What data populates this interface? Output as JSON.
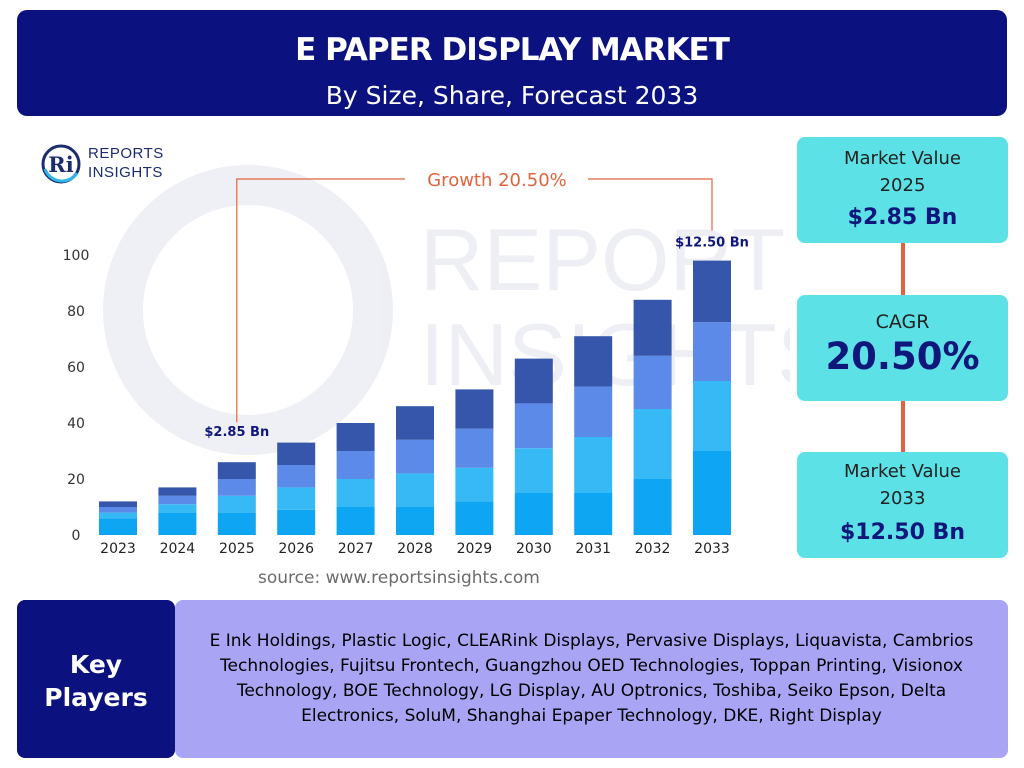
{
  "header": {
    "title": "E PAPER DISPLAY MARKET",
    "subtitle": "By Size, Share, Forecast 2033"
  },
  "logo": {
    "line1": "REPORTS",
    "line2": "INSIGHTS",
    "mark": "Ri"
  },
  "chart_data": {
    "type": "bar",
    "stacked": true,
    "categories": [
      "2023",
      "2024",
      "2025",
      "2026",
      "2027",
      "2028",
      "2029",
      "2030",
      "2031",
      "2032",
      "2033"
    ],
    "series": [
      {
        "color": "#0ea5f2",
        "values": [
          6,
          8,
          8,
          9,
          10,
          10,
          12,
          15,
          15,
          20,
          30
        ]
      },
      {
        "color": "#37b9f5",
        "values": [
          2,
          3,
          6,
          8,
          10,
          12,
          12,
          16,
          20,
          25,
          25
        ]
      },
      {
        "color": "#5c8ae8",
        "values": [
          2,
          3,
          6,
          8,
          10,
          12,
          14,
          16,
          18,
          19,
          21
        ]
      },
      {
        "color": "#3556aa",
        "values": [
          2,
          3,
          6,
          8,
          10,
          12,
          14,
          16,
          18,
          20,
          22
        ]
      }
    ],
    "ylim": [
      0,
      100
    ],
    "yticks": [
      0,
      20,
      40,
      60,
      80,
      100
    ],
    "grid": false,
    "annotations": {
      "growth_label": "Growth 20.50%",
      "start_label": "$2.85 Bn",
      "end_label": "$12.50 Bn"
    }
  },
  "source": "source: www.reportsinsights.com",
  "stats": {
    "value_2025": {
      "label_line1": "Market Value",
      "label_line2": "2025",
      "value": "$2.85 Bn"
    },
    "cagr": {
      "label": "CAGR",
      "value": "20.50%"
    },
    "value_2033": {
      "label_line1": "Market Value",
      "label_line2": "2033",
      "value": "$12.50 Bn"
    }
  },
  "key_players": {
    "heading_line1": "Key",
    "heading_line2": "Players",
    "text": "E Ink Holdings, Plastic Logic, CLEARink Displays, Pervasive Displays, Liquavista, Cambrios Technologies, Fujitsu Frontech, Guangzhou OED Technologies, Toppan Printing, Visionox Technology, BOE Technology, LG Display, AU Optronics, Toshiba, Seiko Epson, Delta Electronics, SoluM, Shanghai Epaper Technology, DKE, Right Display"
  },
  "colors": {
    "navy": "#0c1180",
    "cyan_box": "#5ce1e6",
    "lavender": "#a9a4f4",
    "accent_orange": "#e2643f"
  }
}
